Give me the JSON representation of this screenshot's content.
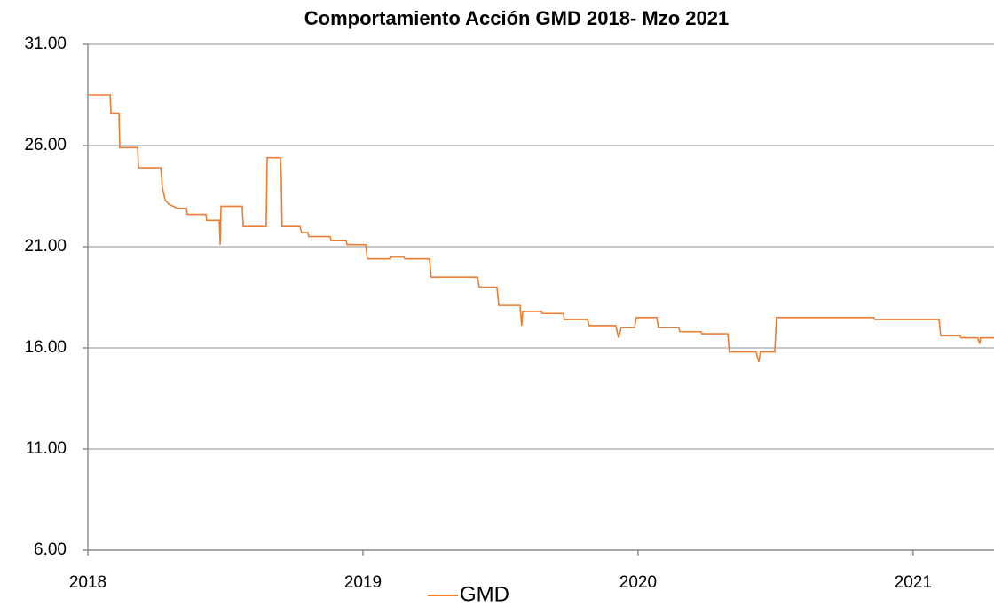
{
  "chart_data": {
    "type": "line",
    "title": "Comportamiento Acción GMD 2018- Mzo 2021",
    "x": [
      2018,
      2018.081,
      2018.084,
      2018.113,
      2018.116,
      2018.181,
      2018.184,
      2018.265,
      2018.271,
      2018.281,
      2018.294,
      2018.326,
      2018.358,
      2018.361,
      2018.429,
      2018.432,
      2018.478,
      2018.481,
      2018.484,
      2018.561,
      2018.565,
      2018.648,
      2018.652,
      2018.7,
      2018.703,
      2018.706,
      2018.771,
      2018.777,
      2018.8,
      2018.803,
      2018.881,
      2018.884,
      2018.939,
      2018.942,
      2019.01,
      2019.016,
      2019.1,
      2019.103,
      2019.148,
      2019.152,
      2019.242,
      2019.248,
      2019.416,
      2019.423,
      2019.487,
      2019.494,
      2019.571,
      2019.577,
      2019.581,
      2019.648,
      2019.652,
      2019.729,
      2019.732,
      2019.816,
      2019.823,
      2019.919,
      2019.929,
      2019.939,
      2019.987,
      2019.994,
      2020.068,
      2020.074,
      2020.148,
      2020.152,
      2020.229,
      2020.232,
      2020.326,
      2020.332,
      2020.429,
      2020.439,
      2020.445,
      2020.497,
      2020.503,
      2020.858,
      2020.861,
      2021.094,
      2021.1,
      2021.171,
      2021.174,
      2021.235,
      2021.242,
      2021.245,
      2021.294
    ],
    "series": [
      {
        "name": "GMD",
        "color": "#ed7d31",
        "values": [
          28.5,
          28.5,
          27.6,
          27.6,
          25.9,
          25.9,
          24.9,
          24.9,
          23.9,
          23.3,
          23.1,
          22.9,
          22.9,
          22.6,
          22.6,
          22.3,
          22.3,
          21.1,
          23.0,
          23.0,
          22.0,
          22.0,
          25.4,
          25.4,
          24.4,
          22.0,
          22.0,
          21.7,
          21.7,
          21.5,
          21.5,
          21.3,
          21.3,
          21.1,
          21.1,
          20.4,
          20.4,
          20.5,
          20.5,
          20.4,
          20.4,
          19.5,
          19.5,
          19.0,
          19.0,
          18.1,
          18.1,
          17.1,
          17.8,
          17.8,
          17.7,
          17.7,
          17.4,
          17.4,
          17.1,
          17.1,
          16.5,
          17.0,
          17.0,
          17.5,
          17.5,
          17.0,
          17.0,
          16.8,
          16.8,
          16.7,
          16.7,
          15.8,
          15.8,
          15.3,
          15.8,
          15.8,
          17.5,
          17.5,
          17.4,
          17.4,
          16.6,
          16.6,
          16.5,
          16.5,
          16.2,
          16.5,
          16.5
        ]
      }
    ],
    "xlim": [
      2018,
      2021.294
    ],
    "xticks": [
      2018,
      2019,
      2020,
      2021
    ],
    "ylim": [
      6,
      31
    ],
    "yticks": [
      {
        "value": 6,
        "label": "6.00"
      },
      {
        "value": 11,
        "label": "11.00"
      },
      {
        "value": 16,
        "label": "16.00"
      },
      {
        "value": 21,
        "label": "21.00"
      },
      {
        "value": 26,
        "label": "26.00"
      },
      {
        "value": 31,
        "label": "31.00"
      }
    ],
    "grid": true,
    "legend": "bottom"
  }
}
